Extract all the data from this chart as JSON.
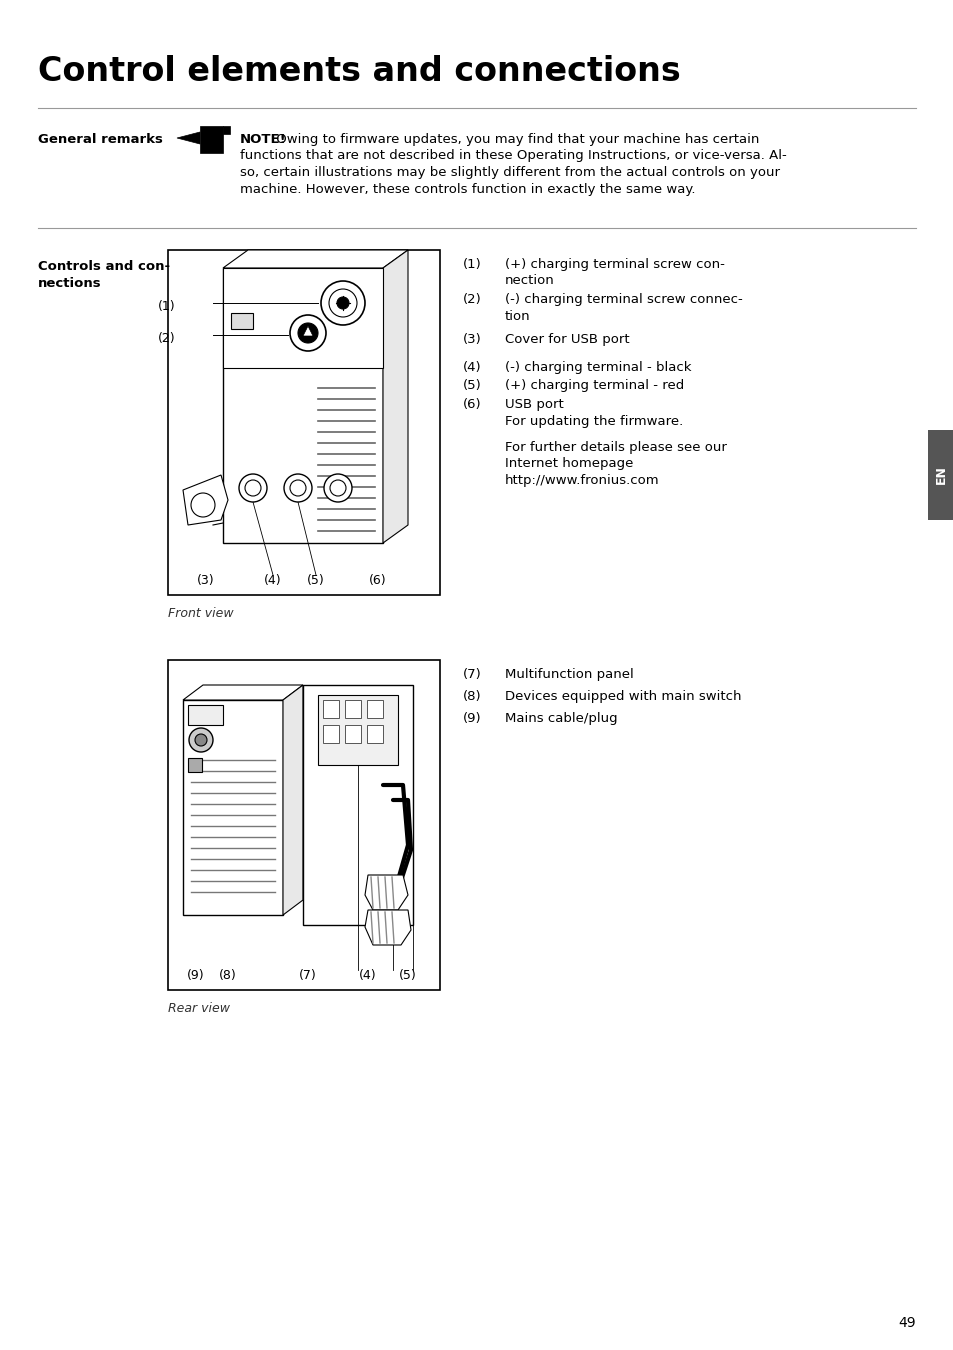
{
  "title": "Control elements and connections",
  "bg_color": "#ffffff",
  "text_color": "#000000",
  "page_number": "49",
  "section_label": "General remarks",
  "note_bold": "NOTE!",
  "note_lines": [
    " Owing to firmware updates, you may find that your machine has certain",
    "functions that are not described in these Operating Instructions, or vice-versa. Al-",
    "so, certain illustrations may be slightly different from the actual controls on your",
    "machine. However, these controls function in exactly the same way."
  ],
  "controls_label_line1": "Controls and con-",
  "controls_label_line2": "nections",
  "front_items": [
    {
      "num": "(1)",
      "lines": [
        "(+) charging terminal screw con-",
        "nection"
      ]
    },
    {
      "num": "(2)",
      "lines": [
        "(-) charging terminal screw connec-",
        "tion"
      ]
    },
    {
      "num": "(3)",
      "lines": [
        "Cover for USB port"
      ]
    },
    {
      "num": "(4)",
      "lines": [
        "(-) charging terminal - black"
      ]
    },
    {
      "num": "(5)",
      "lines": [
        "(+) charging terminal - red"
      ]
    },
    {
      "num": "(6)",
      "lines": [
        "USB port",
        "For updating the firmware."
      ]
    }
  ],
  "front_extra_lines": [
    "For further details please see our",
    "Internet homepage",
    "http://www.fronius.com"
  ],
  "front_caption": "Front view",
  "rear_items": [
    {
      "num": "(7)",
      "lines": [
        "Multifunction panel"
      ]
    },
    {
      "num": "(8)",
      "lines": [
        "Devices equipped with main switch"
      ]
    },
    {
      "num": "(9)",
      "lines": [
        "Mains cable/plug"
      ]
    }
  ],
  "rear_caption": "Rear view",
  "sidebar_text": "EN",
  "line_color": "#999999",
  "draw_color": "#000000",
  "light_gray": "#cccccc",
  "mid_gray": "#888888"
}
